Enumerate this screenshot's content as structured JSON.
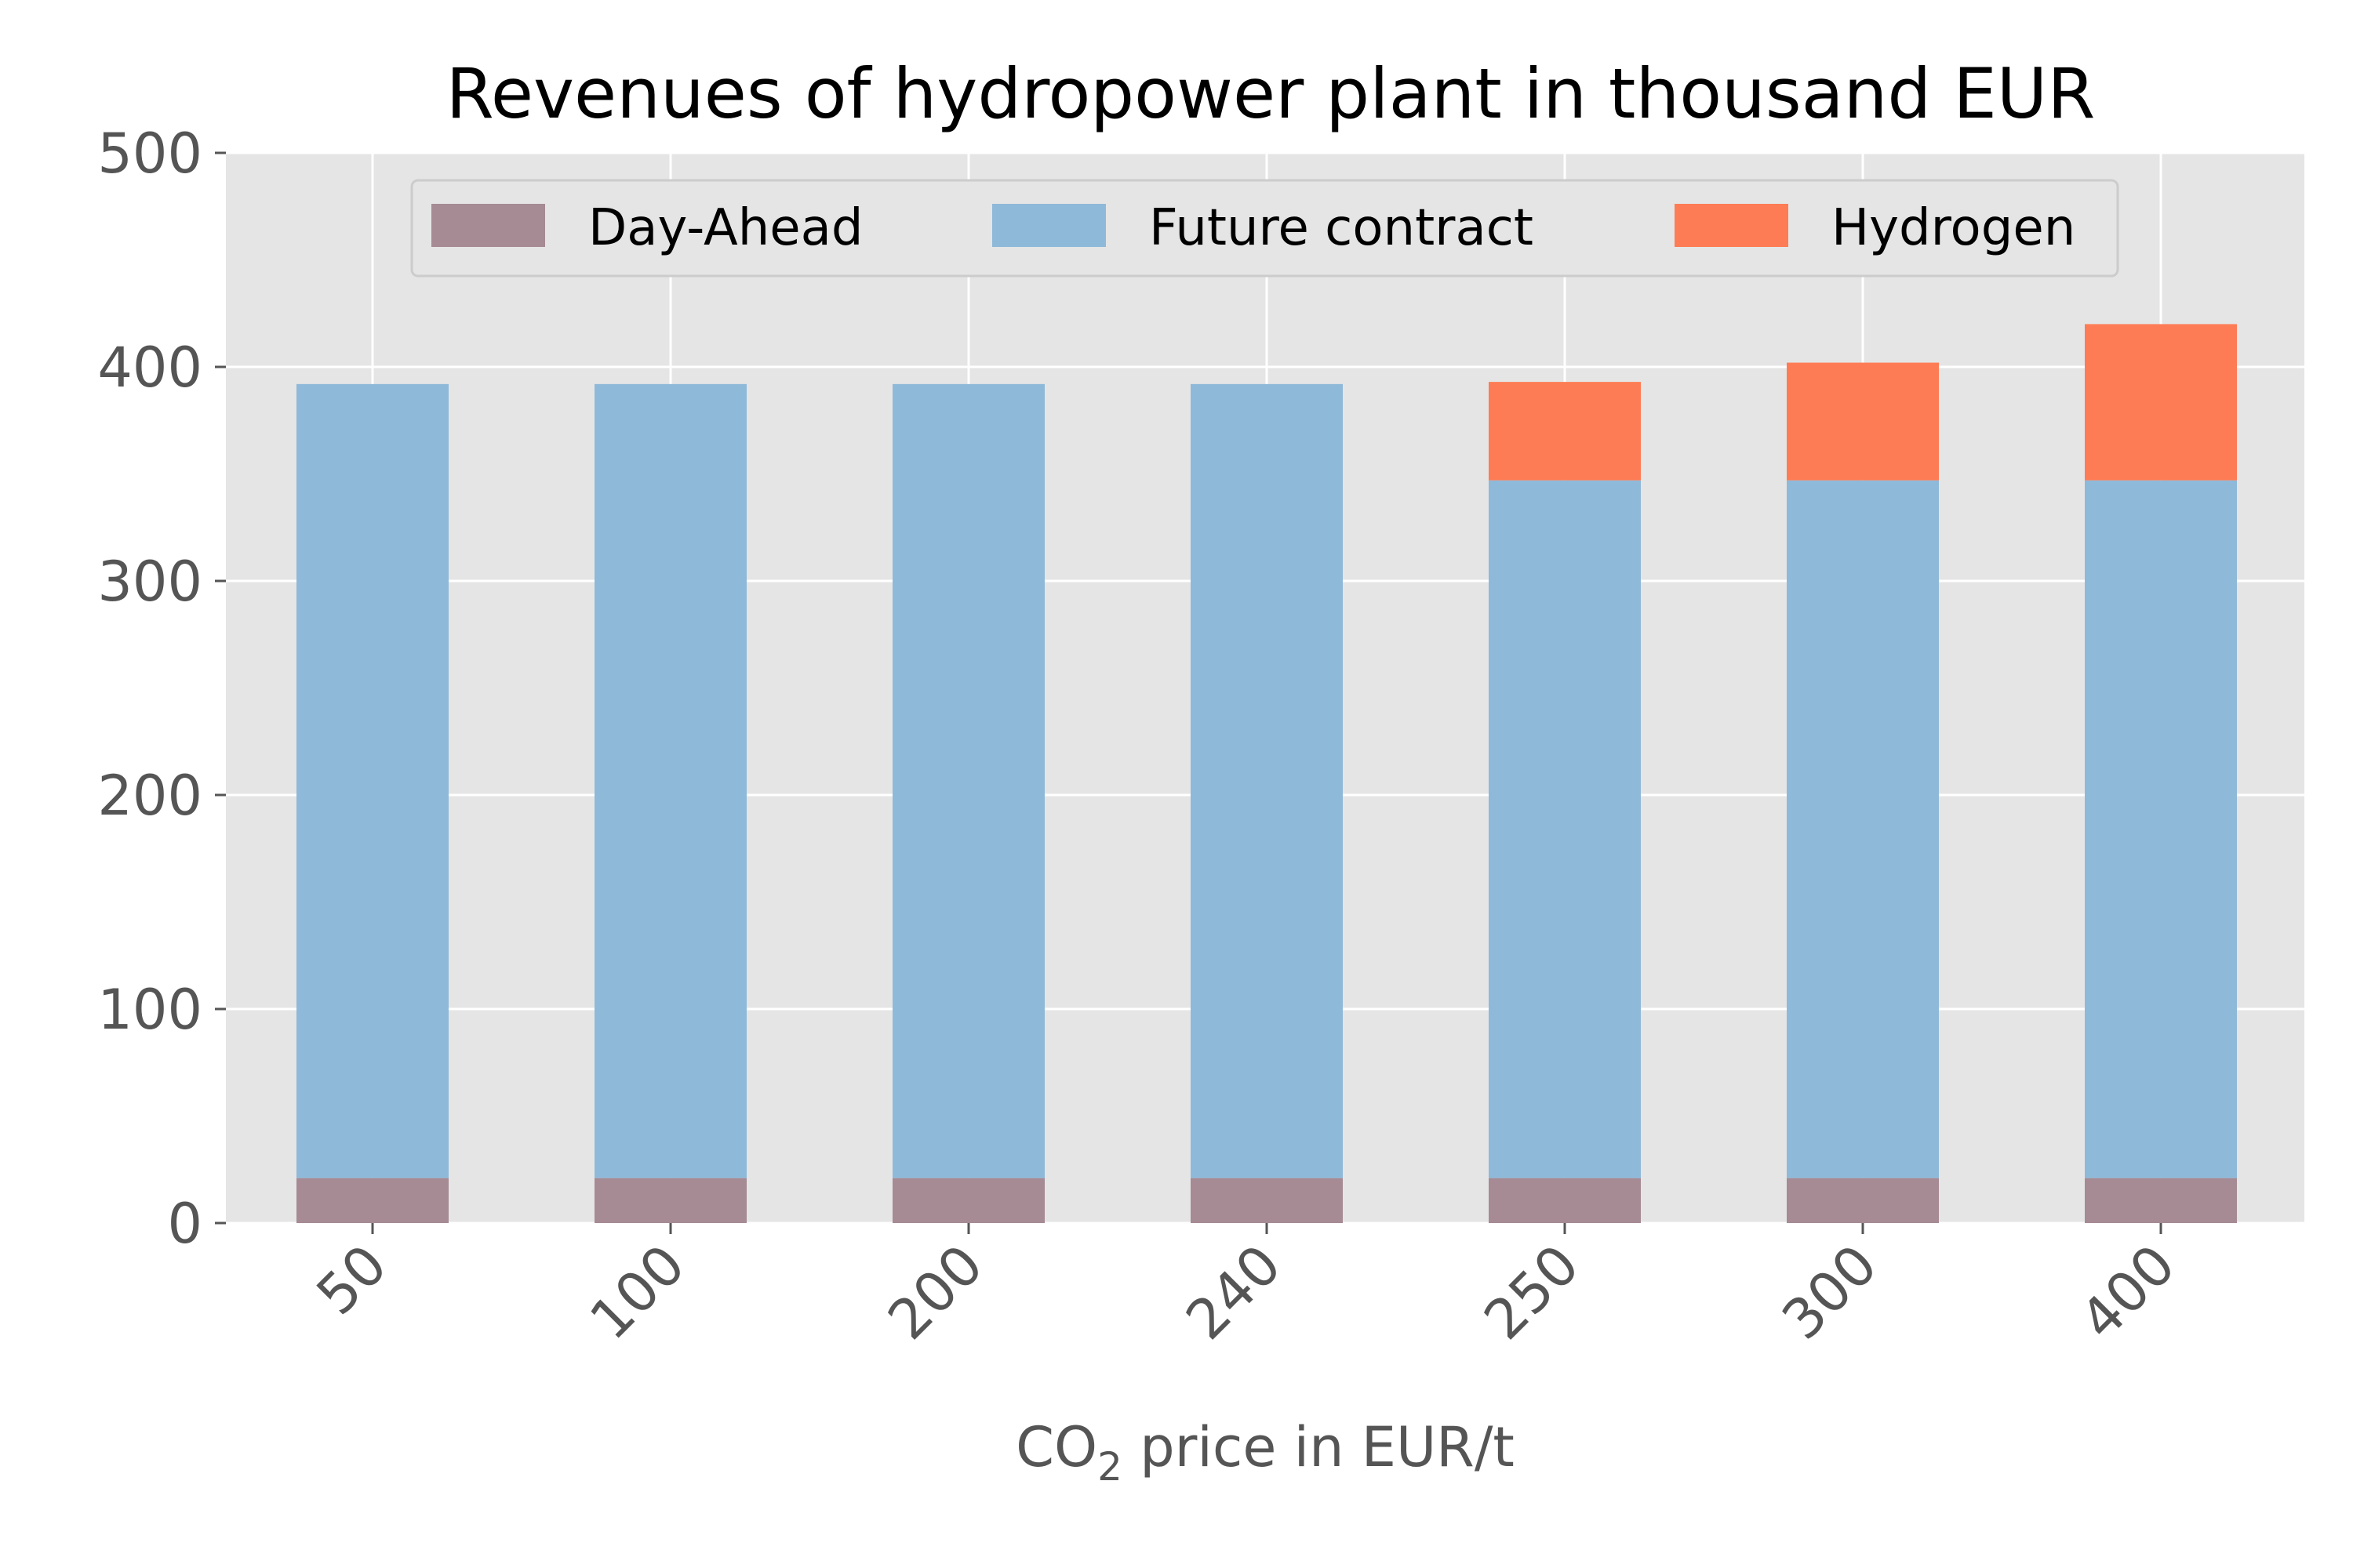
{
  "chart_data": {
    "type": "bar",
    "stacked": true,
    "title": "Revenues of hydropower plant in thousand EUR",
    "xlabel_main": "CO",
    "xlabel_sub": "2",
    "xlabel_rest": " price in EUR/t",
    "ylabel": "",
    "categories": [
      "50",
      "100",
      "200",
      "240",
      "250",
      "300",
      "400"
    ],
    "yticks": [
      "0",
      "100",
      "200",
      "300",
      "400",
      "500"
    ],
    "ylim": [
      0,
      500
    ],
    "grid": true,
    "legend_position": "top-center",
    "series": [
      {
        "name": "Day-Ahead",
        "color": "#a68a94",
        "values": [
          21,
          21,
          21,
          21,
          21,
          21,
          21
        ]
      },
      {
        "name": "Future contract",
        "color": "#8fb9d9",
        "values": [
          371,
          371,
          371,
          371,
          326,
          326,
          326
        ]
      },
      {
        "name": "Hydrogen",
        "color": "#fe7c55",
        "values": [
          0,
          0,
          0,
          0,
          46,
          55,
          73
        ]
      }
    ]
  }
}
